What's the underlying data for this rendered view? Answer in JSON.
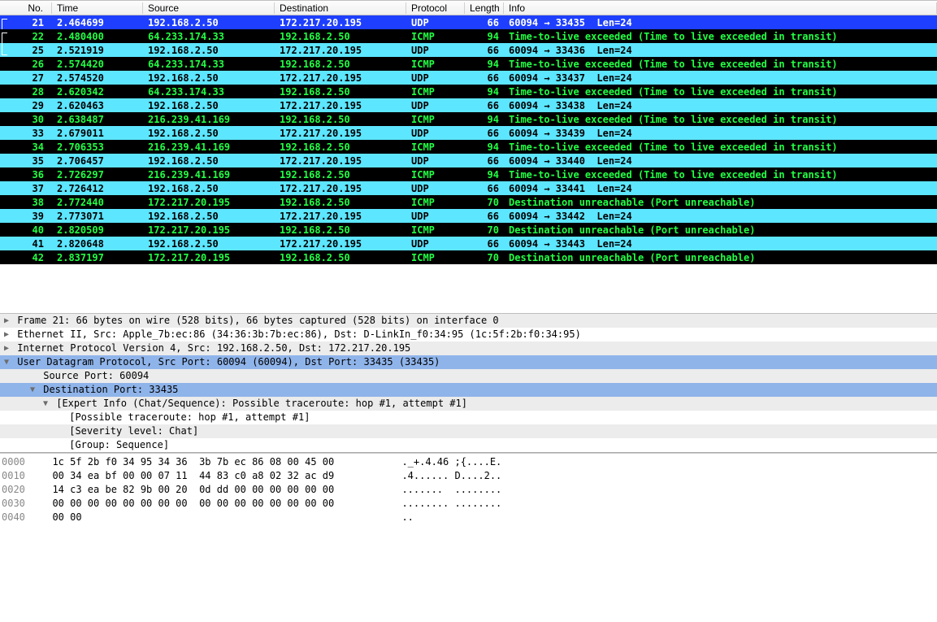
{
  "columns": {
    "no": "No.",
    "time": "Time",
    "source": "Source",
    "destination": "Destination",
    "protocol": "Protocol",
    "length": "Length",
    "info": "Info"
  },
  "packets": [
    {
      "row_style": "selected",
      "no": "21",
      "time": "2.464699",
      "src": "192.168.2.50",
      "dst": "172.217.20.195",
      "proto": "UDP",
      "len": "66",
      "info": "60094 → 33435  Len=24",
      "bracket": true
    },
    {
      "row_style": "black",
      "no": "22",
      "time": "2.480400",
      "src": "64.233.174.33",
      "dst": "192.168.2.50",
      "proto": "ICMP",
      "len": "94",
      "info": "Time-to-live exceeded (Time to live exceeded in transit)",
      "bracket": true
    },
    {
      "row_style": "cyan",
      "no": "25",
      "time": "2.521919",
      "src": "192.168.2.50",
      "dst": "172.217.20.195",
      "proto": "UDP",
      "len": "66",
      "info": "60094 → 33436  Len=24"
    },
    {
      "row_style": "black",
      "no": "26",
      "time": "2.574420",
      "src": "64.233.174.33",
      "dst": "192.168.2.50",
      "proto": "ICMP",
      "len": "94",
      "info": "Time-to-live exceeded (Time to live exceeded in transit)"
    },
    {
      "row_style": "cyan",
      "no": "27",
      "time": "2.574520",
      "src": "192.168.2.50",
      "dst": "172.217.20.195",
      "proto": "UDP",
      "len": "66",
      "info": "60094 → 33437  Len=24"
    },
    {
      "row_style": "black",
      "no": "28",
      "time": "2.620342",
      "src": "64.233.174.33",
      "dst": "192.168.2.50",
      "proto": "ICMP",
      "len": "94",
      "info": "Time-to-live exceeded (Time to live exceeded in transit)"
    },
    {
      "row_style": "cyan",
      "no": "29",
      "time": "2.620463",
      "src": "192.168.2.50",
      "dst": "172.217.20.195",
      "proto": "UDP",
      "len": "66",
      "info": "60094 → 33438  Len=24"
    },
    {
      "row_style": "black",
      "no": "30",
      "time": "2.638487",
      "src": "216.239.41.169",
      "dst": "192.168.2.50",
      "proto": "ICMP",
      "len": "94",
      "info": "Time-to-live exceeded (Time to live exceeded in transit)"
    },
    {
      "row_style": "cyan",
      "no": "33",
      "time": "2.679011",
      "src": "192.168.2.50",
      "dst": "172.217.20.195",
      "proto": "UDP",
      "len": "66",
      "info": "60094 → 33439  Len=24"
    },
    {
      "row_style": "black",
      "no": "34",
      "time": "2.706353",
      "src": "216.239.41.169",
      "dst": "192.168.2.50",
      "proto": "ICMP",
      "len": "94",
      "info": "Time-to-live exceeded (Time to live exceeded in transit)"
    },
    {
      "row_style": "cyan",
      "no": "35",
      "time": "2.706457",
      "src": "192.168.2.50",
      "dst": "172.217.20.195",
      "proto": "UDP",
      "len": "66",
      "info": "60094 → 33440  Len=24"
    },
    {
      "row_style": "black",
      "no": "36",
      "time": "2.726297",
      "src": "216.239.41.169",
      "dst": "192.168.2.50",
      "proto": "ICMP",
      "len": "94",
      "info": "Time-to-live exceeded (Time to live exceeded in transit)"
    },
    {
      "row_style": "cyan",
      "no": "37",
      "time": "2.726412",
      "src": "192.168.2.50",
      "dst": "172.217.20.195",
      "proto": "UDP",
      "len": "66",
      "info": "60094 → 33441  Len=24"
    },
    {
      "row_style": "black",
      "no": "38",
      "time": "2.772440",
      "src": "172.217.20.195",
      "dst": "192.168.2.50",
      "proto": "ICMP",
      "len": "70",
      "info": "Destination unreachable (Port unreachable)"
    },
    {
      "row_style": "cyan",
      "no": "39",
      "time": "2.773071",
      "src": "192.168.2.50",
      "dst": "172.217.20.195",
      "proto": "UDP",
      "len": "66",
      "info": "60094 → 33442  Len=24"
    },
    {
      "row_style": "black",
      "no": "40",
      "time": "2.820509",
      "src": "172.217.20.195",
      "dst": "192.168.2.50",
      "proto": "ICMP",
      "len": "70",
      "info": "Destination unreachable (Port unreachable)"
    },
    {
      "row_style": "cyan",
      "no": "41",
      "time": "2.820648",
      "src": "192.168.2.50",
      "dst": "172.217.20.195",
      "proto": "UDP",
      "len": "66",
      "info": "60094 → 33443  Len=24"
    },
    {
      "row_style": "black",
      "no": "42",
      "time": "2.837197",
      "src": "172.217.20.195",
      "dst": "192.168.2.50",
      "proto": "ICMP",
      "len": "70",
      "info": "Destination unreachable (Port unreachable)"
    }
  ],
  "details": [
    {
      "bg": "grey",
      "indent": 0,
      "tri": "right",
      "text": "Frame 21: 66 bytes on wire (528 bits), 66 bytes captured (528 bits) on interface 0"
    },
    {
      "bg": "white",
      "indent": 0,
      "tri": "right",
      "text": "Ethernet II, Src: Apple_7b:ec:86 (34:36:3b:7b:ec:86), Dst: D-LinkIn_f0:34:95 (1c:5f:2b:f0:34:95)"
    },
    {
      "bg": "grey",
      "indent": 0,
      "tri": "right",
      "text": "Internet Protocol Version 4, Src: 192.168.2.50, Dst: 172.217.20.195"
    },
    {
      "bg": "sel",
      "indent": 0,
      "tri": "down",
      "text": "User Datagram Protocol, Src Port: 60094 (60094), Dst Port: 33435 (33435)"
    },
    {
      "bg": "grey",
      "indent": 2,
      "tri": "",
      "text": "Source Port: 60094"
    },
    {
      "bg": "sel",
      "indent": 2,
      "tri": "down",
      "text": "Destination Port: 33435"
    },
    {
      "bg": "grey",
      "indent": 3,
      "tri": "down",
      "text": "[Expert Info (Chat/Sequence): Possible traceroute: hop #1, attempt #1]"
    },
    {
      "bg": "white",
      "indent": 4,
      "tri": "",
      "text": "[Possible traceroute: hop #1, attempt #1]"
    },
    {
      "bg": "grey",
      "indent": 4,
      "tri": "",
      "text": "[Severity level: Chat]"
    },
    {
      "bg": "white",
      "indent": 4,
      "tri": "",
      "text": "[Group: Sequence]"
    }
  ],
  "hex": [
    {
      "off": "0000",
      "bytes": "1c 5f 2b f0 34 95 34 36  3b 7b ec 86 08 00 45 00",
      "ascii": "._+.4.46 ;{....E."
    },
    {
      "off": "0010",
      "bytes": "00 34 ea bf 00 00 07 11  44 83 c0 a8 02 32 ac d9",
      "ascii": ".4...... D....2.."
    },
    {
      "off": "0020",
      "bytes": "14 c3 ea be 82 9b 00 20  0d dd 00 00 00 00 00 00",
      "ascii": ".......  ........"
    },
    {
      "off": "0030",
      "bytes": "00 00 00 00 00 00 00 00  00 00 00 00 00 00 00 00",
      "ascii": "........ ........"
    },
    {
      "off": "0040",
      "bytes": "00 00",
      "ascii": ".."
    }
  ],
  "colors": {
    "selected_bg": "#1e3fff",
    "selected_fg": "#ffffff",
    "cyan_bg": "#5de6ff",
    "cyan_fg": "#000000",
    "black_bg": "#000000",
    "black_fg": "#22ff44",
    "detail_sel_bg": "#8fb4ea"
  }
}
